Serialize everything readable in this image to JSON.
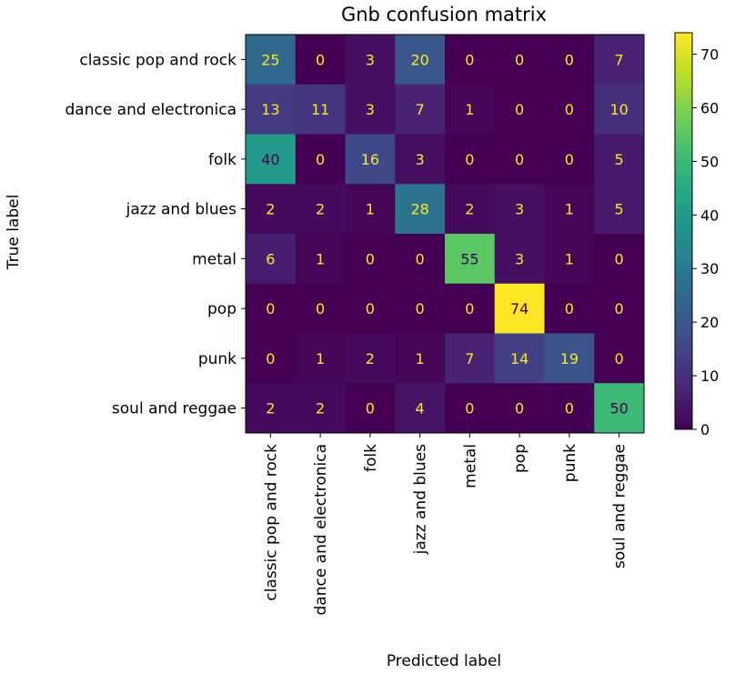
{
  "chart_data": {
    "type": "heatmap",
    "title": "Gnb confusion matrix",
    "xlabel": "Predicted label",
    "ylabel": "True label",
    "labels": [
      "classic pop and rock",
      "dance and electronica",
      "folk",
      "jazz and blues",
      "metal",
      "pop",
      "punk",
      "soul and reggae"
    ],
    "matrix": [
      [
        25,
        0,
        3,
        20,
        0,
        0,
        0,
        7
      ],
      [
        13,
        11,
        3,
        7,
        1,
        0,
        0,
        10
      ],
      [
        40,
        0,
        16,
        3,
        0,
        0,
        0,
        5
      ],
      [
        2,
        2,
        1,
        28,
        2,
        3,
        1,
        5
      ],
      [
        6,
        1,
        0,
        0,
        55,
        3,
        1,
        0
      ],
      [
        0,
        0,
        0,
        0,
        0,
        74,
        0,
        0
      ],
      [
        0,
        1,
        2,
        1,
        7,
        14,
        19,
        0
      ],
      [
        2,
        2,
        0,
        4,
        0,
        0,
        0,
        50
      ]
    ],
    "vmin": 0,
    "vmax": 74,
    "colormap": "viridis",
    "colorbar_ticks": [
      0,
      10,
      20,
      30,
      40,
      50,
      60,
      70
    ]
  }
}
